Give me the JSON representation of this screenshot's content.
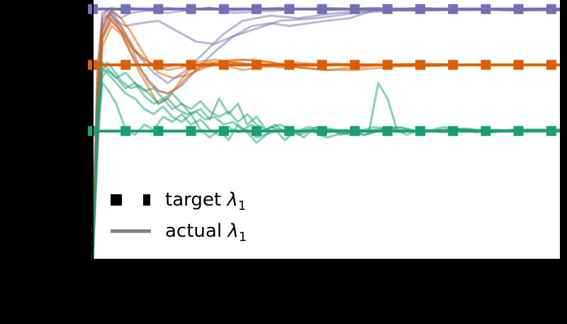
{
  "chart_data": {
    "type": "line",
    "title": "",
    "xlabel": "",
    "ylabel": "",
    "xlim": [
      0,
      100
    ],
    "ylim": [
      0,
      1
    ],
    "grid": false,
    "legend": {
      "placement": "lower-left",
      "entries": [
        {
          "key": "target",
          "label": "target",
          "symbol": "λ",
          "subscript": "1",
          "style": "dotted-square"
        },
        {
          "key": "actual",
          "label": "actual",
          "symbol": "λ",
          "subscript": "1",
          "style": "solid"
        }
      ]
    },
    "target_series": [
      {
        "color": "#7570b3",
        "value": 0.965,
        "x": [
          0,
          7,
          14,
          21,
          28,
          35,
          42,
          49,
          56,
          63,
          70,
          77,
          84,
          91,
          98
        ]
      },
      {
        "color": "#d95f02",
        "value": 0.75,
        "x": [
          0,
          7,
          14,
          21,
          28,
          35,
          42,
          49,
          56,
          63,
          70,
          77,
          84,
          91,
          98
        ]
      },
      {
        "color": "#1b9e77",
        "value": 0.495,
        "x": [
          0,
          7,
          14,
          21,
          28,
          35,
          42,
          49,
          56,
          63,
          70,
          77,
          84,
          91,
          98
        ]
      }
    ],
    "series": [
      {
        "group": "purple",
        "color": "#7570b3",
        "x": [
          0,
          1,
          2,
          4,
          6,
          8,
          12,
          16,
          20,
          25,
          30,
          40,
          50,
          60,
          70,
          80,
          90,
          100
        ],
        "y": [
          0.0,
          0.6,
          0.95,
          0.97,
          0.96,
          0.97,
          0.96,
          0.97,
          0.96,
          0.97,
          0.96,
          0.97,
          0.96,
          0.97,
          0.96,
          0.965,
          0.96,
          0.965
        ]
      },
      {
        "group": "purple",
        "color": "#7570b3",
        "x": [
          0,
          1,
          2,
          4,
          6,
          8,
          12,
          16,
          20,
          25,
          30,
          40,
          50,
          60,
          70,
          80,
          90,
          100
        ],
        "y": [
          0.05,
          0.7,
          0.92,
          0.96,
          0.93,
          0.95,
          0.96,
          0.95,
          0.96,
          0.97,
          0.95,
          0.96,
          0.97,
          0.96,
          0.97,
          0.96,
          0.965,
          0.96
        ]
      },
      {
        "group": "purple",
        "color": "#7570b3",
        "x": [
          0,
          1,
          2,
          4,
          6,
          8,
          10,
          13,
          16,
          20,
          24,
          28,
          32,
          38,
          44,
          52,
          60,
          70,
          80,
          90,
          100
        ],
        "y": [
          0.0,
          0.5,
          0.88,
          0.96,
          0.9,
          0.84,
          0.78,
          0.72,
          0.68,
          0.73,
          0.8,
          0.87,
          0.92,
          0.94,
          0.93,
          0.95,
          0.96,
          0.96,
          0.965,
          0.96,
          0.965
        ]
      },
      {
        "group": "purple",
        "color": "#7570b3",
        "x": [
          0,
          1,
          2,
          4,
          6,
          8,
          10,
          12,
          14,
          16,
          19,
          22,
          26,
          30,
          35,
          40,
          48,
          56,
          65,
          75,
          85,
          100
        ],
        "y": [
          0.0,
          0.4,
          0.85,
          0.95,
          0.88,
          0.8,
          0.74,
          0.69,
          0.65,
          0.64,
          0.67,
          0.73,
          0.8,
          0.86,
          0.89,
          0.92,
          0.93,
          0.95,
          0.96,
          0.96,
          0.965,
          0.96
        ]
      },
      {
        "group": "purple",
        "color": "#7570b3",
        "x": [
          0,
          1,
          2,
          3,
          5,
          7,
          10,
          14,
          18,
          22,
          26,
          30,
          34,
          38,
          42,
          46,
          50,
          55,
          60,
          70,
          80,
          90,
          100
        ],
        "y": [
          0.1,
          0.75,
          0.93,
          0.96,
          0.92,
          0.9,
          0.91,
          0.92,
          0.88,
          0.84,
          0.83,
          0.86,
          0.9,
          0.91,
          0.9,
          0.91,
          0.92,
          0.93,
          0.96,
          0.96,
          0.965,
          0.96,
          0.96
        ]
      },
      {
        "group": "orange",
        "color": "#d95f02",
        "x": [
          0,
          1,
          2,
          4,
          6,
          8,
          10,
          12,
          15,
          18,
          22,
          26,
          30,
          35,
          40,
          50,
          60,
          70,
          80,
          90,
          100
        ],
        "y": [
          0.0,
          0.6,
          0.85,
          0.92,
          0.88,
          0.82,
          0.79,
          0.76,
          0.74,
          0.75,
          0.74,
          0.75,
          0.76,
          0.75,
          0.74,
          0.75,
          0.75,
          0.745,
          0.75,
          0.75,
          0.75
        ]
      },
      {
        "group": "orange",
        "color": "#d95f02",
        "x": [
          0,
          1,
          2,
          4,
          6,
          8,
          10,
          12,
          14,
          17,
          20,
          24,
          28,
          32,
          38,
          44,
          50,
          56,
          62,
          70,
          80,
          90,
          100
        ],
        "y": [
          0.05,
          0.7,
          0.9,
          0.96,
          0.93,
          0.88,
          0.82,
          0.76,
          0.72,
          0.7,
          0.71,
          0.74,
          0.76,
          0.77,
          0.76,
          0.74,
          0.73,
          0.74,
          0.75,
          0.755,
          0.75,
          0.75,
          0.75
        ]
      },
      {
        "group": "orange",
        "color": "#d95f02",
        "x": [
          0,
          1,
          2,
          4,
          6,
          8,
          10,
          12,
          14,
          16,
          18,
          20,
          23,
          26,
          30,
          34,
          38,
          44,
          50,
          56,
          62,
          70,
          80,
          90,
          100
        ],
        "y": [
          0.0,
          0.55,
          0.86,
          0.93,
          0.9,
          0.83,
          0.74,
          0.68,
          0.65,
          0.64,
          0.66,
          0.7,
          0.74,
          0.76,
          0.77,
          0.77,
          0.76,
          0.74,
          0.73,
          0.73,
          0.74,
          0.75,
          0.75,
          0.75,
          0.75
        ]
      },
      {
        "group": "orange",
        "color": "#d95f02",
        "x": [
          0,
          1,
          2,
          4,
          6,
          8,
          10,
          12,
          14,
          16,
          18,
          20,
          22,
          25,
          28,
          32,
          36,
          42,
          50,
          60,
          70,
          80,
          90,
          100
        ],
        "y": [
          0.0,
          0.5,
          0.82,
          0.9,
          0.87,
          0.8,
          0.72,
          0.66,
          0.6,
          0.62,
          0.67,
          0.72,
          0.75,
          0.76,
          0.75,
          0.73,
          0.74,
          0.76,
          0.75,
          0.75,
          0.745,
          0.75,
          0.75,
          0.75
        ]
      },
      {
        "group": "orange",
        "color": "#d95f02",
        "x": [
          0,
          1,
          2,
          3,
          5,
          7,
          9,
          11,
          13,
          16,
          19,
          22,
          26,
          30,
          34,
          40,
          46,
          52,
          58,
          66,
          75,
          85,
          100
        ],
        "y": [
          0.1,
          0.65,
          0.88,
          0.94,
          0.9,
          0.86,
          0.8,
          0.77,
          0.75,
          0.73,
          0.74,
          0.76,
          0.77,
          0.76,
          0.75,
          0.745,
          0.75,
          0.755,
          0.75,
          0.75,
          0.75,
          0.75,
          0.75
        ]
      },
      {
        "group": "green",
        "color": "#1b9e77",
        "x": [
          0,
          1,
          2,
          3,
          4,
          6,
          8,
          10,
          12,
          14,
          16,
          18,
          20,
          22,
          24,
          26,
          28,
          30,
          32,
          34,
          36,
          38,
          40,
          44,
          48,
          52,
          56,
          60,
          65,
          70,
          75,
          80,
          85,
          90,
          95,
          100
        ],
        "y": [
          0.0,
          0.5,
          0.72,
          0.76,
          0.74,
          0.69,
          0.66,
          0.67,
          0.64,
          0.6,
          0.62,
          0.58,
          0.56,
          0.57,
          0.54,
          0.55,
          0.52,
          0.53,
          0.5,
          0.52,
          0.49,
          0.51,
          0.5,
          0.49,
          0.51,
          0.5,
          0.49,
          0.51,
          0.5,
          0.49,
          0.51,
          0.5,
          0.495,
          0.5,
          0.495,
          0.5
        ]
      },
      {
        "group": "green",
        "color": "#1b9e77",
        "x": [
          0,
          1,
          2,
          3,
          5,
          7,
          9,
          11,
          13,
          15,
          17,
          19,
          21,
          23,
          25,
          27,
          29,
          31,
          33,
          35,
          37,
          40,
          43,
          46,
          50,
          55,
          60,
          65,
          70,
          75,
          80,
          85,
          90,
          95,
          100
        ],
        "y": [
          0.05,
          0.6,
          0.76,
          0.74,
          0.7,
          0.72,
          0.68,
          0.65,
          0.66,
          0.62,
          0.64,
          0.6,
          0.58,
          0.61,
          0.57,
          0.55,
          0.57,
          0.53,
          0.56,
          0.52,
          0.5,
          0.52,
          0.49,
          0.51,
          0.5,
          0.48,
          0.5,
          0.51,
          0.49,
          0.5,
          0.505,
          0.49,
          0.5,
          0.5,
          0.495
        ]
      },
      {
        "group": "green",
        "color": "#1b9e77",
        "x": [
          0,
          1,
          2,
          3,
          5,
          7,
          9,
          11,
          13,
          15,
          17,
          19,
          21,
          23,
          25,
          27,
          29,
          31,
          33,
          35,
          37,
          39,
          41,
          43,
          46,
          50,
          54,
          58,
          62,
          66,
          70,
          75,
          80,
          85,
          90,
          95,
          100
        ],
        "y": [
          0.0,
          0.55,
          0.74,
          0.72,
          0.68,
          0.64,
          0.62,
          0.58,
          0.56,
          0.59,
          0.55,
          0.53,
          0.56,
          0.5,
          0.47,
          0.5,
          0.46,
          0.52,
          0.49,
          0.45,
          0.48,
          0.5,
          0.46,
          0.49,
          0.5,
          0.47,
          0.49,
          0.48,
          0.5,
          0.49,
          0.5,
          0.495,
          0.5,
          0.49,
          0.5,
          0.5,
          0.495
        ]
      },
      {
        "group": "green",
        "color": "#1b9e77",
        "x": [
          0,
          1,
          2,
          3,
          5,
          7,
          9,
          11,
          13,
          15,
          17,
          19,
          21,
          23,
          25,
          27,
          29,
          31,
          33,
          35,
          37,
          39,
          41,
          43,
          45,
          47,
          49,
          51,
          53,
          55,
          57,
          59,
          61,
          63,
          65,
          67,
          70,
          75,
          80,
          85,
          90,
          95,
          100
        ],
        "y": [
          0.0,
          0.5,
          0.7,
          0.73,
          0.7,
          0.66,
          0.68,
          0.63,
          0.6,
          0.62,
          0.58,
          0.6,
          0.56,
          0.58,
          0.54,
          0.62,
          0.56,
          0.6,
          0.52,
          0.55,
          0.5,
          0.52,
          0.49,
          0.5,
          0.47,
          0.5,
          0.49,
          0.5,
          0.48,
          0.49,
          0.5,
          0.49,
          0.68,
          0.62,
          0.5,
          0.48,
          0.5,
          0.49,
          0.5,
          0.5,
          0.495,
          0.5,
          0.5
        ]
      },
      {
        "group": "green",
        "color": "#1b9e77",
        "x": [
          0,
          1,
          2,
          3,
          5,
          7,
          9,
          11,
          13,
          15,
          17,
          19,
          21,
          23,
          25,
          27,
          29,
          31,
          33,
          35,
          38,
          41,
          44,
          47,
          50,
          54,
          58,
          62,
          66,
          70,
          74,
          78,
          82,
          86,
          90,
          94,
          98,
          100
        ],
        "y": [
          0.05,
          0.45,
          0.68,
          0.66,
          0.6,
          0.5,
          0.48,
          0.52,
          0.5,
          0.55,
          0.53,
          0.56,
          0.52,
          0.54,
          0.5,
          0.48,
          0.51,
          0.49,
          0.5,
          0.47,
          0.49,
          0.5,
          0.48,
          0.5,
          0.49,
          0.5,
          0.48,
          0.5,
          0.51,
          0.49,
          0.5,
          0.5,
          0.49,
          0.5,
          0.495,
          0.5,
          0.5,
          0.5
        ]
      }
    ]
  }
}
